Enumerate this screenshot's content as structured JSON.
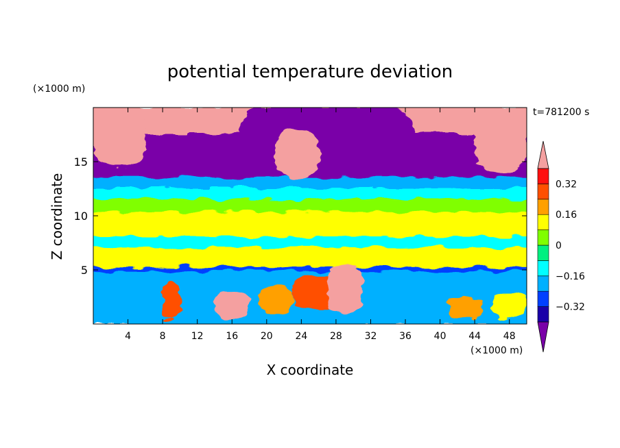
{
  "chart_data": {
    "type": "heatmap",
    "title": "potential temperature deviation",
    "xlabel": "X coordinate",
    "ylabel": "Z coordinate",
    "x_unit": "(×1000 m)",
    "y_unit": "(×1000 m)",
    "time_label": "t=781200 s",
    "xlim": [
      0,
      50
    ],
    "ylim": [
      0,
      20
    ],
    "xticks": [
      4,
      8,
      12,
      16,
      20,
      24,
      28,
      32,
      36,
      40,
      44,
      48
    ],
    "yticks": [
      5,
      10,
      15
    ],
    "colorbar": {
      "levels": [
        -0.4,
        -0.32,
        -0.24,
        -0.16,
        -0.08,
        0,
        0.08,
        0.16,
        0.24,
        0.32,
        0.4
      ],
      "labels": [
        {
          "value": 0.32,
          "text": "0.32"
        },
        {
          "value": 0.16,
          "text": "0.16"
        },
        {
          "value": 0,
          "text": "0"
        },
        {
          "value": -0.16,
          "text": "−0.16"
        },
        {
          "value": -0.32,
          "text": "−0.32"
        }
      ],
      "colors": [
        "#7a00a8",
        "#1a00a8",
        "#0040ff",
        "#00b0ff",
        "#00ffff",
        "#00f080",
        "#80ff00",
        "#ffff00",
        "#ffa000",
        "#ff5000",
        "#ff1010",
        "#f4a0a0"
      ],
      "extend": "both"
    },
    "bands": [
      {
        "z": [
          17.5,
          20
        ],
        "value": 0.5
      },
      {
        "z": [
          13.5,
          17.5
        ],
        "value": -0.5
      },
      {
        "z": [
          12.5,
          13.5
        ],
        "value": -0.2
      },
      {
        "z": [
          11.5,
          12.5
        ],
        "value": -0.12
      },
      {
        "z": [
          10.3,
          11.5
        ],
        "value": 0.05
      },
      {
        "z": [
          9.0,
          10.3
        ],
        "value": 0.1
      },
      {
        "z": [
          8.0,
          9.0
        ],
        "value": 0.12
      },
      {
        "z": [
          7.0,
          8.0
        ],
        "value": -0.1
      },
      {
        "z": [
          5.2,
          7.0
        ],
        "value": 0.1
      },
      {
        "z": [
          4.8,
          5.2
        ],
        "value": -0.3
      },
      {
        "z": [
          0,
          4.8
        ],
        "value": -0.2
      }
    ],
    "features": [
      {
        "x": [
          17,
          37
        ],
        "z": [
          15,
          20
        ],
        "value": -0.5
      },
      {
        "x": [
          0,
          6
        ],
        "z": [
          14.5,
          20
        ],
        "value": 0.5
      },
      {
        "x": [
          44,
          50
        ],
        "z": [
          14,
          19.5
        ],
        "value": 0.5
      },
      {
        "x": [
          21,
          26
        ],
        "z": [
          13.5,
          18
        ],
        "value": 0.5
      },
      {
        "x": [
          8,
          10
        ],
        "z": [
          0.5,
          3.8
        ],
        "value": 0.3
      },
      {
        "x": [
          14,
          18
        ],
        "z": [
          0.5,
          3
        ],
        "value": 0.5
      },
      {
        "x": [
          19,
          23
        ],
        "z": [
          1,
          3.5
        ],
        "value": 0.2
      },
      {
        "x": [
          23,
          29
        ],
        "z": [
          1.5,
          4.5
        ],
        "value": 0.3
      },
      {
        "x": [
          27,
          31
        ],
        "z": [
          1,
          5.5
        ],
        "value": 0.5
      },
      {
        "x": [
          41,
          45
        ],
        "z": [
          0.5,
          2.5
        ],
        "value": 0.2
      },
      {
        "x": [
          46,
          50
        ],
        "z": [
          0.5,
          3
        ],
        "value": 0.1
      }
    ]
  }
}
